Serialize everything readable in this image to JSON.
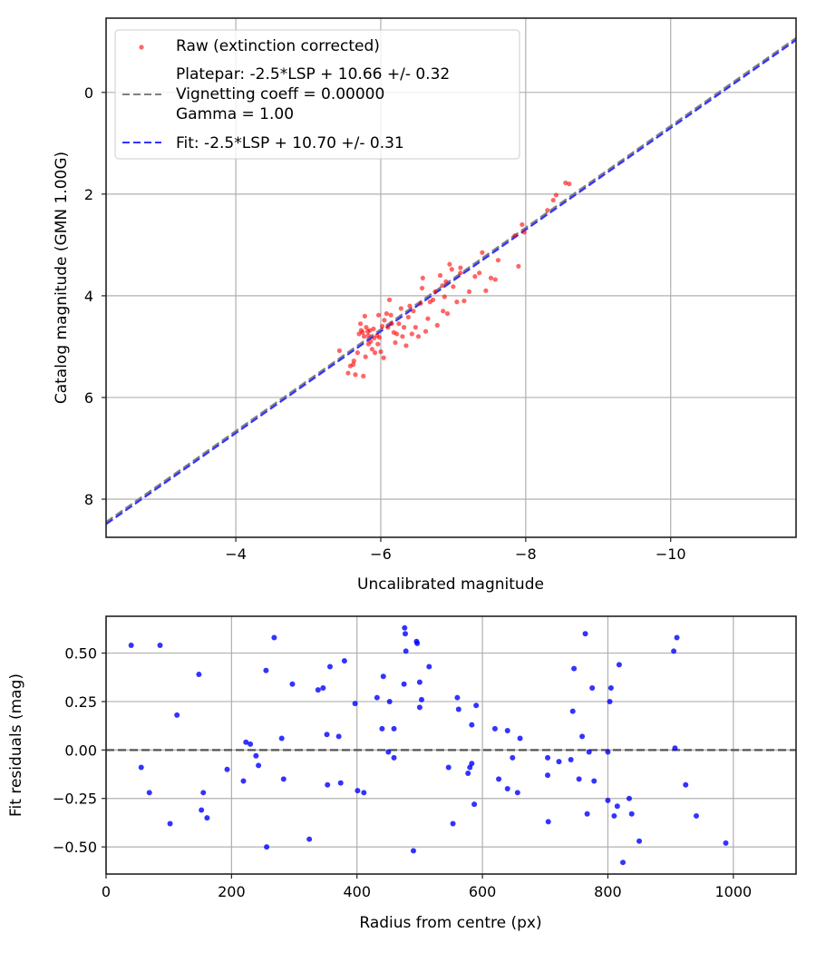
{
  "chart_data": [
    {
      "type": "scatter",
      "title": "",
      "xlabel": "Uncalibrated magnitude",
      "ylabel": "Catalog magnitude (GMN 1.00G)",
      "xlim": [
        -2.21,
        -11.73
      ],
      "ylim": [
        8.75,
        -1.46
      ],
      "x_inverted": true,
      "y_inverted": true,
      "grid": true,
      "legend_position": "upper left",
      "xticks": [
        -4,
        -6,
        -8,
        -10
      ],
      "xtick_labels": [
        "−4",
        "−6",
        "−8",
        "−10"
      ],
      "yticks": [
        0,
        2,
        4,
        6,
        8
      ],
      "ytick_labels": [
        "0",
        "2",
        "4",
        "6",
        "8"
      ],
      "legend": [
        {
          "label": "Raw (extinction corrected)",
          "marker": "dot",
          "color": "#ff0000"
        },
        {
          "label": "Platepar: -2.5*LSP + 10.66 +/- 0.32\nVignetting coeff = 0.00000\nGamma = 1.00",
          "marker": "dashed-line",
          "color": "#808080"
        },
        {
          "label": "Fit: -2.5*LSP + 10.70 +/- 0.31",
          "marker": "dashed-line",
          "color": "#3333ff"
        }
      ],
      "series": [
        {
          "name": "Raw (extinction corrected)",
          "kind": "scatter",
          "color": "#ff0000",
          "alpha": 0.6,
          "points": [
            [
              -5.43,
              5.08
            ],
            [
              -5.55,
              5.52
            ],
            [
              -5.58,
              5.38
            ],
            [
              -5.62,
              5.35
            ],
            [
              -5.65,
              5.55
            ],
            [
              -5.63,
              5.28
            ],
            [
              -5.68,
              5.12
            ],
            [
              -5.7,
              4.75
            ],
            [
              -5.72,
              4.55
            ],
            [
              -5.73,
              4.68
            ],
            [
              -5.75,
              4.72
            ],
            [
              -5.77,
              4.8
            ],
            [
              -5.78,
              4.4
            ],
            [
              -5.8,
              4.62
            ],
            [
              -5.82,
              4.7
            ],
            [
              -5.83,
              4.78
            ],
            [
              -5.85,
              4.68
            ],
            [
              -5.86,
              4.9
            ],
            [
              -5.88,
              5.05
            ],
            [
              -5.79,
              5.2
            ],
            [
              -5.76,
              5.58
            ],
            [
              -5.83,
              4.95
            ],
            [
              -5.9,
              4.65
            ],
            [
              -5.91,
              4.83
            ],
            [
              -5.92,
              5.12
            ],
            [
              -5.95,
              4.78
            ],
            [
              -5.96,
              4.95
            ],
            [
              -5.97,
              4.38
            ],
            [
              -6.0,
              5.1
            ],
            [
              -6.02,
              4.6
            ],
            [
              -6.04,
              5.22
            ],
            [
              -6.05,
              4.48
            ],
            [
              -6.08,
              4.35
            ],
            [
              -6.1,
              4.62
            ],
            [
              -6.12,
              4.08
            ],
            [
              -6.14,
              4.38
            ],
            [
              -6.18,
              4.72
            ],
            [
              -6.2,
              4.92
            ],
            [
              -6.22,
              4.75
            ],
            [
              -6.25,
              4.55
            ],
            [
              -6.28,
              4.25
            ],
            [
              -6.3,
              4.8
            ],
            [
              -6.32,
              4.62
            ],
            [
              -6.35,
              4.98
            ],
            [
              -6.38,
              4.42
            ],
            [
              -6.4,
              4.2
            ],
            [
              -6.43,
              4.75
            ],
            [
              -6.48,
              4.62
            ],
            [
              -6.52,
              4.8
            ],
            [
              -6.55,
              4.15
            ],
            [
              -6.57,
              3.85
            ],
            [
              -6.58,
              3.65
            ],
            [
              -6.62,
              4.7
            ],
            [
              -6.65,
              4.45
            ],
            [
              -6.68,
              4.12
            ],
            [
              -6.72,
              4.08
            ],
            [
              -6.75,
              3.92
            ],
            [
              -6.78,
              4.58
            ],
            [
              -6.82,
              3.6
            ],
            [
              -6.85,
              3.8
            ],
            [
              -6.86,
              4.3
            ],
            [
              -6.88,
              4.02
            ],
            [
              -6.9,
              3.72
            ],
            [
              -6.92,
              4.35
            ],
            [
              -6.95,
              3.38
            ],
            [
              -6.98,
              3.48
            ],
            [
              -7.0,
              3.82
            ],
            [
              -7.05,
              4.12
            ],
            [
              -7.1,
              3.55
            ],
            [
              -7.15,
              4.1
            ],
            [
              -7.22,
              3.92
            ],
            [
              -7.3,
              3.62
            ],
            [
              -7.36,
              3.55
            ],
            [
              -7.4,
              3.15
            ],
            [
              -7.45,
              3.9
            ],
            [
              -7.52,
              3.65
            ],
            [
              -7.58,
              3.68
            ],
            [
              -7.62,
              3.3
            ],
            [
              -7.85,
              2.82
            ],
            [
              -7.9,
              3.42
            ],
            [
              -7.95,
              2.6
            ],
            [
              -7.98,
              2.75
            ],
            [
              -8.3,
              2.32
            ],
            [
              -8.38,
              2.12
            ],
            [
              -8.42,
              2.02
            ],
            [
              -8.55,
              1.78
            ],
            [
              -8.6,
              1.8
            ],
            [
              -6.15,
              4.55
            ],
            [
              -5.98,
              4.82
            ],
            [
              -6.45,
              4.3
            ],
            [
              -7.1,
              3.45
            ]
          ]
        },
        {
          "name": "Platepar",
          "kind": "line",
          "color": "#808080",
          "dash": true,
          "intercept": 10.66,
          "slope": 1.0
        },
        {
          "name": "Fit",
          "kind": "line",
          "color": "#3333ff",
          "dash": true,
          "intercept": 10.7,
          "slope": 1.0
        }
      ]
    },
    {
      "type": "scatter",
      "title": "",
      "xlabel": "Radius from centre (px)",
      "ylabel": "Fit residuals (mag)",
      "xlim": [
        0,
        1100
      ],
      "ylim": [
        -0.64,
        0.69
      ],
      "grid": true,
      "xticks": [
        0,
        200,
        400,
        600,
        800,
        1000
      ],
      "xtick_labels": [
        "0",
        "200",
        "400",
        "600",
        "800",
        "1000"
      ],
      "yticks": [
        0.5,
        0.25,
        0.0,
        -0.25,
        -0.5
      ],
      "ytick_labels": [
        "0.50",
        "0.25",
        "0.00",
        "−0.25",
        "−0.50"
      ],
      "hline": {
        "y": 0.0,
        "color": "#555555",
        "dash": true
      },
      "series": [
        {
          "name": "Residuals",
          "kind": "scatter",
          "color": "#0000ff",
          "alpha": 0.8,
          "points": [
            [
              40,
              0.54
            ],
            [
              56,
              -0.09
            ],
            [
              69,
              -0.22
            ],
            [
              86,
              0.54
            ],
            [
              102,
              -0.38
            ],
            [
              113,
              0.18
            ],
            [
              148,
              0.39
            ],
            [
              152,
              -0.31
            ],
            [
              155,
              -0.22
            ],
            [
              161,
              -0.35
            ],
            [
              193,
              -0.1
            ],
            [
              219,
              -0.16
            ],
            [
              223,
              0.04
            ],
            [
              230,
              0.03
            ],
            [
              239,
              -0.03
            ],
            [
              243,
              -0.08
            ],
            [
              256,
              -0.5
            ],
            [
              255,
              0.41
            ],
            [
              268,
              0.58
            ],
            [
              280,
              0.06
            ],
            [
              283,
              -0.15
            ],
            [
              297,
              0.34
            ],
            [
              324,
              -0.46
            ],
            [
              338,
              0.31
            ],
            [
              346,
              0.32
            ],
            [
              352,
              0.08
            ],
            [
              353,
              -0.18
            ],
            [
              357,
              0.43
            ],
            [
              371,
              0.07
            ],
            [
              374,
              -0.17
            ],
            [
              380,
              0.46
            ],
            [
              397,
              0.24
            ],
            [
              401,
              -0.21
            ],
            [
              411,
              -0.22
            ],
            [
              432,
              0.27
            ],
            [
              440,
              0.11
            ],
            [
              442,
              0.38
            ],
            [
              450,
              -0.01
            ],
            [
              452,
              0.25
            ],
            [
              459,
              -0.04
            ],
            [
              459,
              0.11
            ],
            [
              475,
              0.34
            ],
            [
              476,
              0.63
            ],
            [
              477,
              0.6
            ],
            [
              478,
              0.51
            ],
            [
              490,
              -0.52
            ],
            [
              495,
              0.56
            ],
            [
              496,
              0.55
            ],
            [
              500,
              0.35
            ],
            [
              500,
              0.22
            ],
            [
              503,
              0.26
            ],
            [
              515,
              0.43
            ],
            [
              546,
              -0.09
            ],
            [
              553,
              -0.38
            ],
            [
              560,
              0.27
            ],
            [
              562,
              0.21
            ],
            [
              577,
              -0.12
            ],
            [
              580,
              -0.09
            ],
            [
              583,
              -0.07
            ],
            [
              583,
              0.13
            ],
            [
              587,
              -0.28
            ],
            [
              590,
              0.23
            ],
            [
              620,
              0.11
            ],
            [
              626,
              -0.15
            ],
            [
              640,
              0.1
            ],
            [
              640,
              -0.2
            ],
            [
              648,
              -0.04
            ],
            [
              656,
              -0.22
            ],
            [
              660,
              0.06
            ],
            [
              704,
              -0.04
            ],
            [
              704,
              -0.13
            ],
            [
              705,
              -0.37
            ],
            [
              722,
              -0.06
            ],
            [
              741,
              -0.05
            ],
            [
              744,
              0.2
            ],
            [
              746,
              0.42
            ],
            [
              754,
              -0.15
            ],
            [
              759,
              0.07
            ],
            [
              764,
              0.6
            ],
            [
              767,
              -0.33
            ],
            [
              770,
              -0.01
            ],
            [
              775,
              0.32
            ],
            [
              778,
              -0.16
            ],
            [
              800,
              -0.26
            ],
            [
              800,
              -0.01
            ],
            [
              803,
              0.25
            ],
            [
              805,
              0.32
            ],
            [
              810,
              -0.34
            ],
            [
              815,
              -0.29
            ],
            [
              818,
              0.44
            ],
            [
              824,
              -0.58
            ],
            [
              834,
              -0.25
            ],
            [
              838,
              -0.33
            ],
            [
              850,
              -0.47
            ],
            [
              905,
              0.51
            ],
            [
              907,
              0.01
            ],
            [
              910,
              0.58
            ],
            [
              924,
              -0.18
            ],
            [
              941,
              -0.34
            ],
            [
              988,
              -0.48
            ]
          ]
        }
      ]
    }
  ]
}
